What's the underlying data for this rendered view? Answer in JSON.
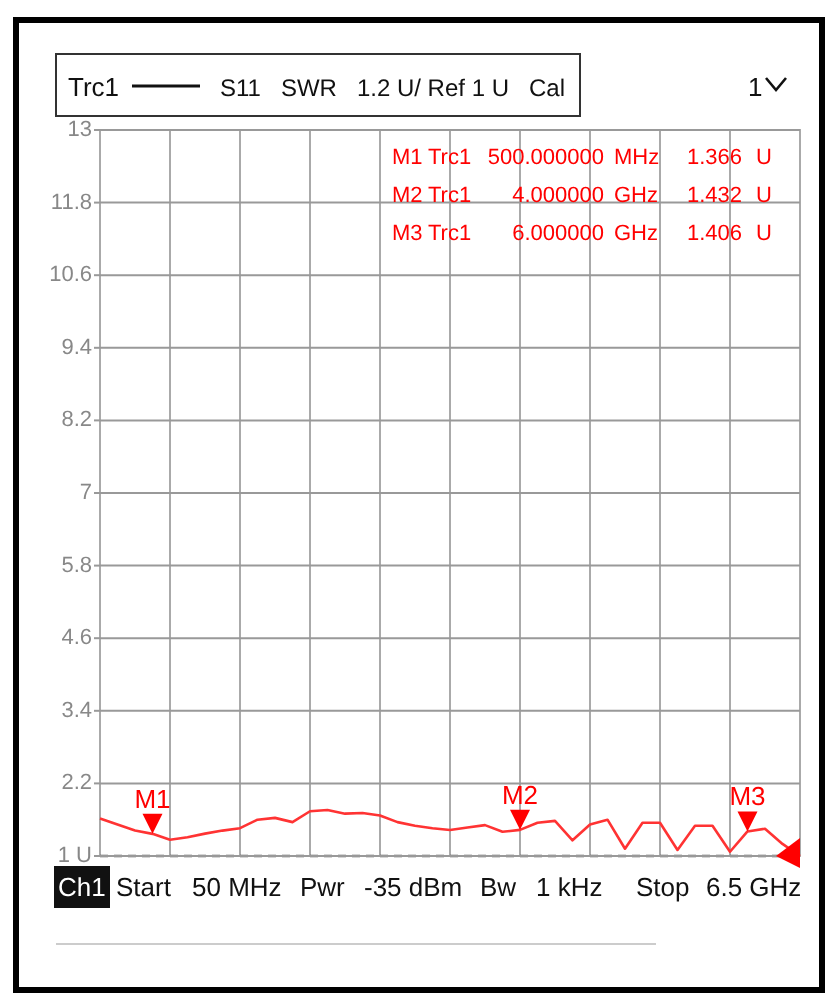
{
  "chart_data": {
    "type": "line",
    "title": "Trc1",
    "subtitle": "S11   SWR   1.2 U/ Ref 1 U   Cal",
    "categories": [
      null,
      null,
      null,
      null,
      null,
      null,
      null,
      null,
      null,
      null,
      null,
      null,
      null,
      null,
      null,
      null,
      null,
      null,
      null,
      null,
      null,
      null,
      null,
      null,
      null,
      null,
      null,
      null,
      null,
      null,
      null,
      null,
      null,
      null,
      null,
      null,
      null,
      null,
      null,
      null,
      null
    ],
    "ylim": [
      1,
      13
    ],
    "yticks": [
      13,
      11.8,
      10.6,
      9.4,
      8.2,
      7,
      5.8,
      4.6,
      3.4,
      2.2,
      {
        "value": 1,
        "label": "1 U"
      }
    ],
    "tick_labels": "y",
    "grid": true,
    "series": [
      {
        "color": "#ff3333",
        "marker": "none",
        "line_style": "solid",
        "values": [
          1.62,
          1.52,
          1.42,
          1.366,
          1.27,
          1.31,
          1.37,
          1.42,
          1.46,
          1.6,
          1.63,
          1.56,
          1.74,
          1.76,
          1.7,
          1.71,
          1.67,
          1.56,
          1.5,
          1.46,
          1.43,
          1.47,
          1.51,
          1.4,
          1.432,
          1.55,
          1.58,
          1.26,
          1.52,
          1.6,
          1.12,
          1.55,
          1.55,
          1.1,
          1.5,
          1.5,
          1.07,
          1.406,
          1.45,
          1.2,
          1.0
        ]
      }
    ],
    "ref_lines": [
      {
        "axis": "y",
        "value": 1,
        "color": "#555555",
        "line_style": "dashed"
      }
    ],
    "annotations": [
      {
        "text": "M1",
        "y": 1.366
      },
      {
        "text": "M2",
        "y": 1.432
      },
      {
        "text": "M3",
        "y": 1.406
      },
      "M1 Trc1 500.000000 MHz 1.366 U",
      "M2 Trc1 4.000000 GHz 1.432 U",
      "M3 Trc1 6.000000 GHz 1.406 U",
      "1",
      "Ch1",
      "Start",
      "50 MHz",
      "Pwr",
      "-35 dBm",
      "Bw",
      "1 kHz",
      "Stop",
      "6.5 GHz"
    ]
  }
}
